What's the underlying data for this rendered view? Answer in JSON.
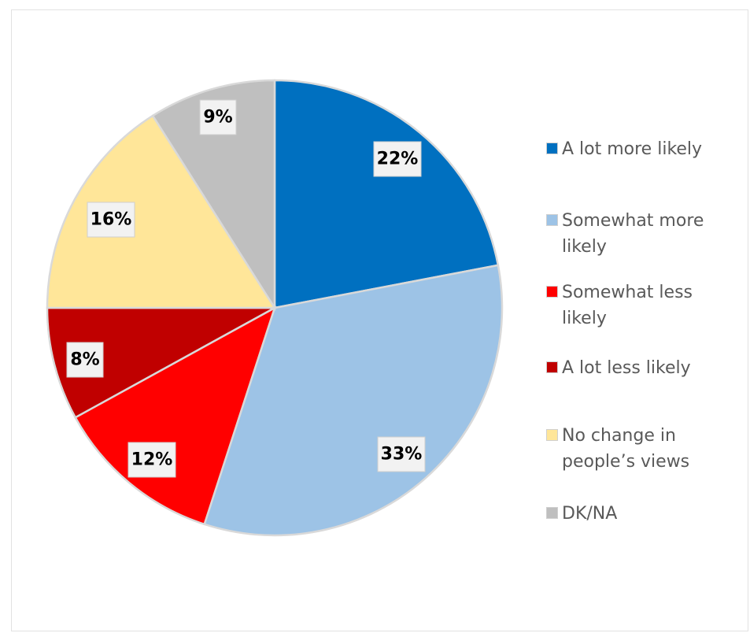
{
  "chart_data": {
    "type": "pie",
    "title": "",
    "start_angle": "12 o'clock, clockwise",
    "slices": [
      {
        "name": "A lot more likely",
        "value": 22,
        "label": "22%",
        "color": "#0070C0"
      },
      {
        "name": "Somewhat more likely",
        "value": 33,
        "label": "33%",
        "color": "#9DC3E6"
      },
      {
        "name": "Somewhat less likely",
        "value": 12,
        "label": "12%",
        "color": "#FF0000"
      },
      {
        "name": "A lot less likely",
        "value": 8,
        "label": "8%",
        "color": "#C00000"
      },
      {
        "name": "No change in people’s views",
        "value": 16,
        "label": "16%",
        "color": "#FFE699"
      },
      {
        "name": "DK/NA",
        "value": 9,
        "label": "9%",
        "color": "#BFBFBF"
      }
    ],
    "legend": {
      "placement": "right",
      "entries": [
        "A lot more likely",
        "Somewhat more likely",
        "Somewhat less likely",
        "A lot less likely",
        "No change in people’s views",
        "DK/NA"
      ]
    }
  }
}
